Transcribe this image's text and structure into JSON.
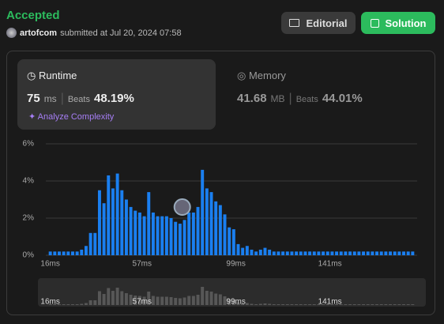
{
  "header": {
    "status": "Accepted",
    "user": "artofcom",
    "submitted": "submitted at Jul 20, 2024 07:58"
  },
  "buttons": {
    "editorial": "Editorial",
    "solution": "Solution"
  },
  "runtime": {
    "label": "Runtime",
    "value": 75,
    "unit": "ms",
    "beats_label": "Beats",
    "beats": "48.19%",
    "analyze": "Analyze Complexity"
  },
  "memory": {
    "label": "Memory",
    "value": 41.68,
    "unit": "MB",
    "beats_label": "Beats",
    "beats": "44.01%"
  },
  "distribution": {
    "type": "bar",
    "color": "#1a7ff0",
    "overview_color": "#575757",
    "xlim": [
      14,
      180
    ],
    "ylim": [
      0,
      6
    ],
    "yticks": [
      {
        "value": 0,
        "label": "0%"
      },
      {
        "value": 2,
        "label": "2%"
      },
      {
        "value": 4,
        "label": "4%"
      },
      {
        "value": 6,
        "label": "6%"
      }
    ],
    "xticks": [
      {
        "value": 16,
        "label": "16ms"
      },
      {
        "value": 57,
        "label": "57ms"
      },
      {
        "value": 99,
        "label": "99ms"
      },
      {
        "value": 141,
        "label": "141ms"
      }
    ],
    "x": [
      16,
      18,
      20,
      22,
      24,
      26,
      28,
      30,
      32,
      34,
      36,
      38,
      40,
      42,
      44,
      46,
      48,
      50,
      52,
      54,
      56,
      58,
      60,
      62,
      64,
      66,
      68,
      70,
      72,
      74,
      76,
      78,
      80,
      82,
      84,
      86,
      88,
      90,
      92,
      94,
      96,
      98,
      100,
      102,
      104,
      106,
      108,
      110,
      112,
      114,
      116,
      118,
      120,
      122,
      124,
      126,
      128,
      130,
      132,
      134,
      136,
      138,
      140,
      142,
      144,
      146,
      148,
      150,
      152,
      154,
      156,
      158,
      160,
      162,
      164,
      166,
      168,
      170,
      172,
      174,
      176,
      178
    ],
    "values": [
      0.2,
      0.2,
      0.2,
      0.2,
      0.2,
      0.2,
      0.2,
      0.3,
      0.5,
      1.2,
      1.2,
      3.5,
      2.8,
      4.3,
      3.6,
      4.4,
      3.5,
      3.0,
      2.6,
      2.4,
      2.3,
      2.1,
      3.4,
      2.3,
      2.1,
      2.1,
      2.1,
      2.0,
      1.8,
      1.7,
      1.9,
      2.3,
      2.3,
      2.6,
      4.6,
      3.6,
      3.4,
      2.9,
      2.7,
      2.2,
      1.5,
      1.4,
      0.6,
      0.4,
      0.5,
      0.3,
      0.2,
      0.3,
      0.4,
      0.3,
      0.2,
      0.2,
      0.2,
      0.2,
      0.2,
      0.2,
      0.2,
      0.2,
      0.2,
      0.2,
      0.2,
      0.2,
      0.2,
      0.2,
      0.2,
      0.2,
      0.2,
      0.2,
      0.2,
      0.2,
      0.2,
      0.2,
      0.2,
      0.2,
      0.2,
      0.2,
      0.2,
      0.2,
      0.2,
      0.2,
      0.2,
      0.2
    ]
  }
}
